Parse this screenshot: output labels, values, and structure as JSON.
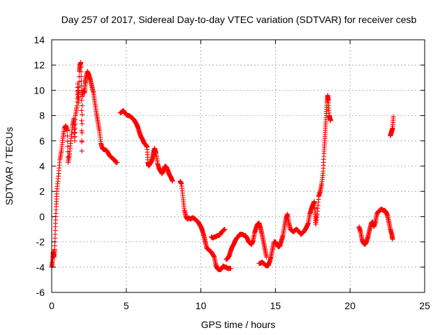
{
  "chart_data": {
    "type": "scatter",
    "title": "Day 257 of 2017, Sidereal Day-to-day VTEC variation (SDTVAR) for receiver cesb",
    "xlabel": "GPS time / hours",
    "ylabel": "SDTVAR / TECUs",
    "xlim": [
      0,
      25
    ],
    "ylim": [
      -6,
      14
    ],
    "xticks": [
      0,
      5,
      10,
      15,
      20,
      25
    ],
    "yticks": [
      -6,
      -4,
      -2,
      0,
      2,
      4,
      6,
      8,
      10,
      12,
      14
    ],
    "grid": true,
    "marker": "plus",
    "color": "#ff0000",
    "series": [
      {
        "name": "SDTVAR",
        "segments": [
          [
            [
              0.0,
              -4.0
            ],
            [
              0.05,
              -3.5
            ],
            [
              0.1,
              -2.8
            ],
            [
              0.15,
              -3.2
            ],
            [
              0.2,
              -2.6
            ],
            [
              0.25,
              -0.8
            ],
            [
              0.3,
              0.8
            ],
            [
              0.35,
              2.0
            ],
            [
              0.45,
              3.2
            ],
            [
              0.55,
              4.5
            ],
            [
              0.65,
              5.2
            ],
            [
              0.75,
              6.2
            ],
            [
              0.85,
              7.0
            ],
            [
              0.95,
              7.2
            ],
            [
              1.05,
              6.8
            ],
            [
              1.1,
              4.3
            ],
            [
              1.2,
              5.0
            ],
            [
              1.3,
              6.2
            ],
            [
              1.4,
              7.2
            ],
            [
              1.5,
              7.8
            ],
            [
              1.55,
              6.0
            ],
            [
              1.6,
              8.0
            ],
            [
              1.7,
              8.8
            ],
            [
              1.75,
              10.5
            ],
            [
              1.8,
              9.0
            ],
            [
              1.85,
              11.5
            ],
            [
              1.9,
              12.0
            ],
            [
              1.95,
              12.2
            ],
            [
              2.0,
              10.0
            ],
            [
              2.02,
              5.2
            ],
            [
              2.05,
              9.5
            ],
            [
              2.1,
              10.0
            ],
            [
              2.2,
              9.8
            ],
            [
              2.25,
              10.5
            ],
            [
              2.3,
              11.0
            ],
            [
              2.4,
              11.5
            ],
            [
              2.5,
              11.2
            ],
            [
              2.6,
              10.8
            ],
            [
              2.7,
              10.3
            ],
            [
              2.8,
              9.8
            ],
            [
              2.9,
              9.0
            ],
            [
              3.0,
              8.2
            ],
            [
              3.1,
              7.5
            ],
            [
              3.2,
              6.8
            ],
            [
              3.3,
              5.8
            ],
            [
              3.4,
              5.4
            ],
            [
              3.5,
              5.3
            ],
            [
              3.6,
              5.3
            ],
            [
              3.7,
              5.2
            ],
            [
              3.8,
              5.0
            ],
            [
              3.9,
              4.8
            ],
            [
              4.0,
              4.7
            ],
            [
              4.1,
              4.6
            ],
            [
              4.2,
              4.5
            ],
            [
              4.3,
              4.3
            ],
            [
              4.4,
              4.3
            ]
          ],
          [
            [
              4.6,
              8.2
            ],
            [
              4.7,
              8.3
            ],
            [
              4.8,
              8.4
            ],
            [
              4.9,
              8.2
            ],
            [
              5.0,
              8.1
            ],
            [
              5.1,
              8.0
            ],
            [
              5.2,
              8.0
            ],
            [
              5.3,
              7.9
            ],
            [
              5.4,
              7.8
            ],
            [
              5.5,
              7.7
            ],
            [
              5.6,
              7.5
            ],
            [
              5.7,
              7.3
            ],
            [
              5.8,
              7.0
            ],
            [
              5.9,
              6.6
            ],
            [
              6.0,
              6.3
            ],
            [
              6.1,
              6.1
            ],
            [
              6.2,
              5.8
            ],
            [
              6.3,
              5.7
            ],
            [
              6.4,
              5.5
            ],
            [
              6.45,
              4.3
            ],
            [
              6.5,
              4.0
            ],
            [
              6.6,
              4.2
            ],
            [
              6.7,
              4.4
            ],
            [
              6.8,
              4.8
            ],
            [
              6.85,
              5.2
            ],
            [
              6.9,
              5.4
            ],
            [
              7.0,
              5.0
            ],
            [
              7.1,
              4.2
            ],
            [
              7.2,
              3.8
            ],
            [
              7.3,
              3.6
            ],
            [
              7.4,
              3.4
            ],
            [
              7.5,
              3.7
            ],
            [
              7.6,
              4.0
            ],
            [
              7.7,
              3.9
            ],
            [
              7.8,
              3.6
            ],
            [
              7.9,
              3.3
            ],
            [
              8.0,
              3.1
            ],
            [
              8.1,
              2.8
            ]
          ],
          [
            [
              8.6,
              2.8
            ],
            [
              8.7,
              2.6
            ],
            [
              8.8,
              1.5
            ],
            [
              8.9,
              0.5
            ],
            [
              9.0,
              0.0
            ],
            [
              9.1,
              -0.2
            ],
            [
              9.2,
              -0.1
            ],
            [
              9.3,
              -0.2
            ],
            [
              9.4,
              -0.1
            ],
            [
              9.5,
              -0.1
            ],
            [
              9.6,
              -0.2
            ],
            [
              9.7,
              -0.3
            ],
            [
              9.8,
              -0.4
            ],
            [
              9.9,
              -0.6
            ],
            [
              10.0,
              -0.8
            ],
            [
              10.1,
              -1.1
            ],
            [
              10.2,
              -1.5
            ],
            [
              10.3,
              -2.0
            ],
            [
              10.4,
              -2.5
            ],
            [
              10.5,
              -2.6
            ],
            [
              10.6,
              -2.7
            ],
            [
              10.7,
              -2.8
            ],
            [
              10.8,
              -3.0
            ],
            [
              10.9,
              -3.2
            ],
            [
              11.0,
              -3.8
            ],
            [
              11.1,
              -4.1
            ],
            [
              11.2,
              -4.2
            ],
            [
              11.3,
              -4.2
            ],
            [
              11.4,
              -4.1
            ],
            [
              11.5,
              -3.9
            ],
            [
              11.6,
              -4.0
            ],
            [
              11.7,
              -4.0
            ],
            [
              11.8,
              -4.1
            ],
            [
              11.9,
              -4.1
            ],
            [
              12.0,
              -4.1
            ]
          ],
          [
            [
              10.7,
              -1.6
            ],
            [
              10.8,
              -1.7
            ],
            [
              10.9,
              -1.6
            ],
            [
              11.0,
              -1.6
            ],
            [
              11.1,
              -1.5
            ],
            [
              11.2,
              -1.5
            ],
            [
              11.3,
              -1.4
            ],
            [
              11.4,
              -1.2
            ],
            [
              11.5,
              -1.1
            ],
            [
              11.6,
              -1.0
            ]
          ],
          [
            [
              11.7,
              -3.4
            ],
            [
              11.8,
              -3.3
            ],
            [
              11.9,
              -3.1
            ],
            [
              12.0,
              -2.7
            ],
            [
              12.1,
              -2.4
            ],
            [
              12.2,
              -2.2
            ],
            [
              12.3,
              -1.9
            ],
            [
              12.4,
              -1.7
            ],
            [
              12.5,
              -1.6
            ],
            [
              12.6,
              -1.4
            ],
            [
              12.7,
              -1.4
            ],
            [
              12.8,
              -1.4
            ],
            [
              12.9,
              -1.5
            ],
            [
              13.0,
              -1.5
            ],
            [
              13.1,
              -1.7
            ],
            [
              13.2,
              -2.0
            ],
            [
              13.3,
              -2.1
            ],
            [
              13.4,
              -2.2
            ],
            [
              13.5,
              -1.9
            ],
            [
              13.6,
              -1.3
            ],
            [
              13.7,
              -0.9
            ],
            [
              13.8,
              -0.6
            ],
            [
              13.9,
              -0.5
            ],
            [
              14.0,
              -0.9
            ],
            [
              14.1,
              -1.4
            ],
            [
              14.2,
              -2.0
            ],
            [
              14.3,
              -2.6
            ],
            [
              14.4,
              -3.2
            ]
          ],
          [
            [
              13.9,
              -3.7
            ],
            [
              14.0,
              -3.7
            ],
            [
              14.1,
              -3.6
            ],
            [
              14.2,
              -3.7
            ],
            [
              14.3,
              -3.8
            ],
            [
              14.4,
              -3.9
            ],
            [
              14.5,
              -3.9
            ],
            [
              14.6,
              -3.6
            ],
            [
              14.7,
              -3.2
            ],
            [
              14.8,
              -2.6
            ],
            [
              14.9,
              -2.0
            ],
            [
              15.0,
              -2.0
            ],
            [
              15.1,
              -2.2
            ],
            [
              15.2,
              -2.4
            ],
            [
              15.3,
              -2.3
            ],
            [
              15.4,
              -1.9
            ],
            [
              15.5,
              -1.5
            ],
            [
              15.6,
              -0.8
            ],
            [
              15.7,
              -0.2
            ],
            [
              15.8,
              0.2
            ],
            [
              15.9,
              -0.5
            ],
            [
              16.0,
              -1.0
            ],
            [
              16.1,
              -1.1
            ],
            [
              16.2,
              -1.2
            ],
            [
              16.3,
              -1.1
            ],
            [
              16.4,
              -1.0
            ],
            [
              16.5,
              -1.1
            ],
            [
              16.6,
              -1.2
            ],
            [
              16.7,
              -1.4
            ],
            [
              16.8,
              -1.3
            ],
            [
              16.9,
              -1.2
            ],
            [
              17.0,
              -1.0
            ],
            [
              17.1,
              -0.8
            ],
            [
              17.2,
              -0.5
            ],
            [
              17.3,
              0.2
            ],
            [
              17.4,
              0.6
            ],
            [
              17.5,
              0.9
            ],
            [
              17.6,
              1.2
            ],
            [
              17.65,
              0.3
            ],
            [
              17.7,
              -0.6
            ],
            [
              17.8,
              0.2
            ],
            [
              17.9,
              1.6
            ],
            [
              18.0,
              2.0
            ],
            [
              18.1,
              2.6
            ],
            [
              18.2,
              3.6
            ],
            [
              18.25,
              5.0
            ],
            [
              18.3,
              6.0
            ],
            [
              18.35,
              7.0
            ],
            [
              18.4,
              8.0
            ],
            [
              18.45,
              9.0
            ],
            [
              18.5,
              9.6
            ],
            [
              18.55,
              9.2
            ],
            [
              18.6,
              8.0
            ],
            [
              18.65,
              7.8
            ],
            [
              18.7,
              7.6
            ]
          ],
          [
            [
              20.6,
              -0.8
            ],
            [
              20.7,
              -1.2
            ],
            [
              20.8,
              -1.8
            ],
            [
              20.9,
              -2.1
            ],
            [
              21.0,
              -2.2
            ],
            [
              21.1,
              -2.0
            ],
            [
              21.2,
              -1.6
            ],
            [
              21.3,
              -1.1
            ],
            [
              21.4,
              -0.6
            ],
            [
              21.5,
              -0.4
            ],
            [
              21.6,
              -0.8
            ],
            [
              21.7,
              -0.4
            ],
            [
              21.8,
              0.2
            ],
            [
              21.9,
              0.4
            ],
            [
              22.0,
              0.5
            ],
            [
              22.1,
              0.6
            ],
            [
              22.2,
              0.5
            ],
            [
              22.3,
              0.5
            ],
            [
              22.4,
              0.4
            ],
            [
              22.5,
              0.1
            ],
            [
              22.6,
              -0.4
            ],
            [
              22.7,
              -1.0
            ],
            [
              22.8,
              -1.4
            ],
            [
              22.85,
              -1.8
            ]
          ],
          [
            [
              22.7,
              6.4
            ],
            [
              22.75,
              6.6
            ],
            [
              22.8,
              6.8
            ],
            [
              22.85,
              7.0
            ],
            [
              22.9,
              7.9
            ]
          ]
        ]
      }
    ]
  }
}
